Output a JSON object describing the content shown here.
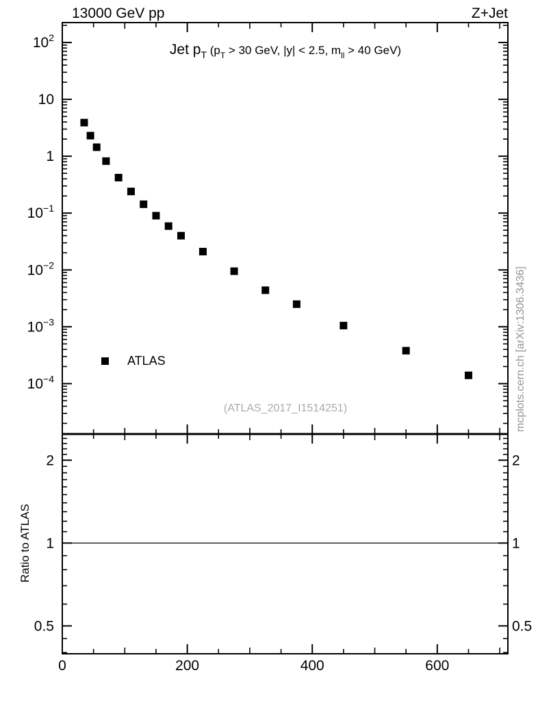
{
  "colors": {
    "foreground": "#000000",
    "background": "#ffffff",
    "watermark_gray": "#aaaaaa",
    "sidenote_gray": "#949494"
  },
  "header": {
    "left_label": "13000 GeV pp",
    "right_label": "Z+Jet"
  },
  "plot_title": {
    "plain": "Jet pT (pT > 30 GeV, |y| < 2.5, mll > 40 GeV)",
    "segments": [
      {
        "text": "Jet p",
        "style": "large"
      },
      {
        "text": "T",
        "style": "sub"
      },
      {
        "text": " (p",
        "style": "small"
      },
      {
        "text": "T",
        "style": "subsmall"
      },
      {
        "text": " > 30 GeV, |y| < 2.5, m",
        "style": "small"
      },
      {
        "text": "ll",
        "style": "subsmall"
      },
      {
        "text": " > 40 GeV)",
        "style": "small"
      }
    ]
  },
  "legend": {
    "marker": "filled-square-icon",
    "label": "ATLAS"
  },
  "watermark": "(ATLAS_2017_I1514251)",
  "side_note": "mcplots.cern.ch [arXiv:1306.3436]",
  "x_axis": {
    "ticks": [
      0,
      200,
      400,
      600
    ],
    "tick_labels": [
      "0",
      "200",
      "400",
      "600"
    ],
    "minor_step": 50,
    "lim": [
      0,
      713
    ]
  },
  "main_y_axis": {
    "tick_exponents": [
      2,
      1,
      0,
      -1,
      -2,
      -3,
      -4
    ],
    "tick_labels": [
      "10^2",
      "10",
      "1",
      "10^-1",
      "10^-2",
      "10^-3",
      "10^-4"
    ]
  },
  "ratio_panel": {
    "ylabel": "Ratio to ATLAS",
    "yticks": [
      2,
      1,
      0.5
    ],
    "ytick_labels": [
      "2",
      "1",
      "0.5"
    ],
    "reference_line_at": 1
  },
  "chart_data": [
    {
      "type": "scatter",
      "title": "Jet pT (pT > 30 GeV, |y| < 2.5, mll > 40 GeV)",
      "xlabel": "",
      "ylabel": "",
      "xscale": "linear",
      "yscale": "log",
      "xlim": [
        0,
        713
      ],
      "ylim": [
        1.3e-05,
        224
      ],
      "grid": false,
      "legend_position": "left-bottom-inside",
      "series": [
        {
          "name": "ATLAS",
          "marker": "filled-square",
          "color": "#000000",
          "x": [
            35,
            45,
            55,
            70,
            90,
            110,
            130,
            150,
            170,
            190,
            225,
            275,
            325,
            375,
            450,
            550,
            650
          ],
          "y": [
            3.9,
            2.3,
            1.44,
            0.82,
            0.42,
            0.24,
            0.143,
            0.09,
            0.059,
            0.04,
            0.021,
            0.0095,
            0.0044,
            0.0025,
            0.00105,
            0.00038,
            0.00014
          ]
        }
      ]
    },
    {
      "type": "line",
      "title": "",
      "xlabel": "",
      "ylabel": "Ratio to ATLAS",
      "xscale": "linear",
      "yscale": "log",
      "xlim": [
        0,
        713
      ],
      "ylim": [
        0.396,
        2.49
      ],
      "yticks": [
        0.5,
        1,
        2
      ],
      "xticks": [
        0,
        200,
        400,
        600
      ],
      "grid": false,
      "series": [
        {
          "name": "reference-unity",
          "color": "#000000",
          "y_const": 1
        }
      ]
    }
  ]
}
